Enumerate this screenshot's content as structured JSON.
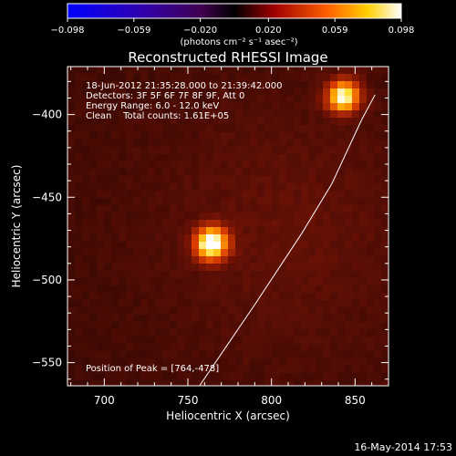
{
  "chart_data": {
    "type": "heatmap",
    "title": "Reconstructed RHESSI Image",
    "xlabel": "Heliocentric X (arcsec)",
    "ylabel": "Heliocentric Y (arcsec)",
    "xlim": [
      678,
      870
    ],
    "ylim": [
      -564,
      -371
    ],
    "x_ticks": [
      700,
      750,
      800,
      850
    ],
    "y_ticks": [
      -400,
      -450,
      -500,
      -550
    ],
    "colorbar": {
      "colormap": "hot/blue-red-yellow-white",
      "range": [
        -0.098,
        0.098
      ],
      "tick_values": [
        -0.098,
        -0.059,
        -0.02,
        0.02,
        0.059,
        0.098
      ],
      "tick_labels": [
        "−0.098",
        "−0.059",
        "−0.020",
        "0.020",
        "0.059",
        "0.098"
      ],
      "units_label": "(photons cm⁻² s⁻¹ asec⁻²)"
    },
    "info_lines": [
      "18-Jun-2012 21:35:28.000 to 21:39:42.000",
      "Detectors: 3F 5F 6F 7F 8F 9F, Att 0",
      "Energy Range: 6.0 - 12.0 keV",
      "Clean    Total counts: 1.61E+05"
    ],
    "sources": [
      {
        "name": "peak-source",
        "x": 764,
        "y": -478,
        "sigma": 7,
        "amp": 1.0
      },
      {
        "name": "secondary-source",
        "x": 843,
        "y": -389,
        "sigma": 7,
        "amp": 0.9
      }
    ],
    "limb_curve": [
      [
        757,
        -564
      ],
      [
        790,
        -515
      ],
      [
        818,
        -472
      ],
      [
        836,
        -442
      ],
      [
        854,
        -403
      ],
      [
        862,
        -388
      ]
    ],
    "peak_label": "Position of Peak = [764,-478]",
    "timestamp": "16-May-2014 17:53"
  }
}
